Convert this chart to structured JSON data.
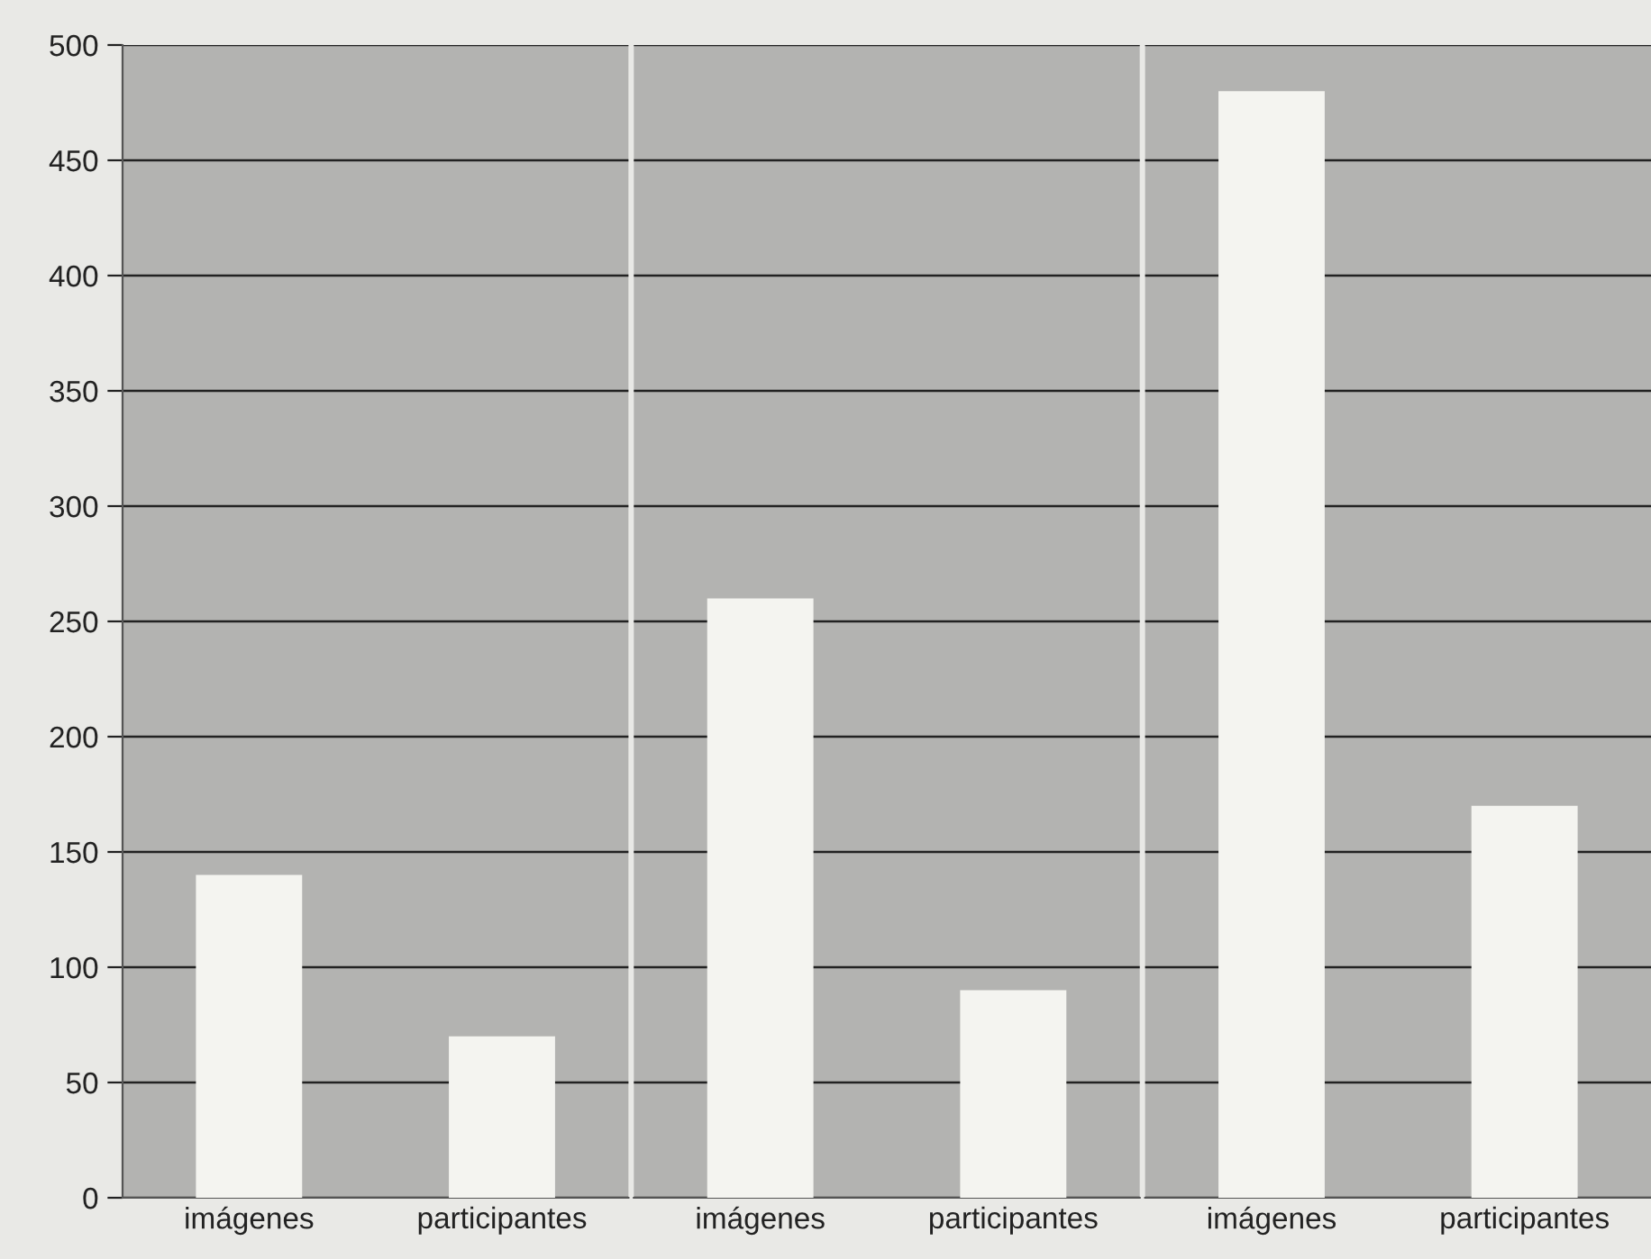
{
  "chart_data": [
    {
      "type": "bar",
      "categories": [
        "imágenes",
        "participantes"
      ],
      "values": [
        140,
        70
      ],
      "color": "#f4f4f0",
      "ylim": [
        0,
        500
      ],
      "yticks": [
        0,
        50,
        100,
        150,
        200,
        250,
        300,
        350,
        400,
        450,
        500
      ],
      "grid": "y"
    },
    {
      "type": "bar",
      "categories": [
        "imágenes",
        "participantes"
      ],
      "values": [
        260,
        90
      ],
      "color": "#f4f4f0",
      "ylim": [
        0,
        500
      ],
      "yticks": [
        0,
        50,
        100,
        150,
        200,
        250,
        300,
        350,
        400,
        450,
        500
      ],
      "grid": "y",
      "tick_labels": "x"
    },
    {
      "type": "bar",
      "categories": [
        "imágenes",
        "participantes"
      ],
      "values": [
        480,
        170
      ],
      "color": "#f4f4f0",
      "ylim": [
        0,
        500
      ],
      "yticks": [
        0,
        50,
        100,
        150,
        200,
        250,
        300,
        350,
        400,
        450,
        500
      ],
      "grid": "y",
      "tick_labels": "x"
    }
  ]
}
